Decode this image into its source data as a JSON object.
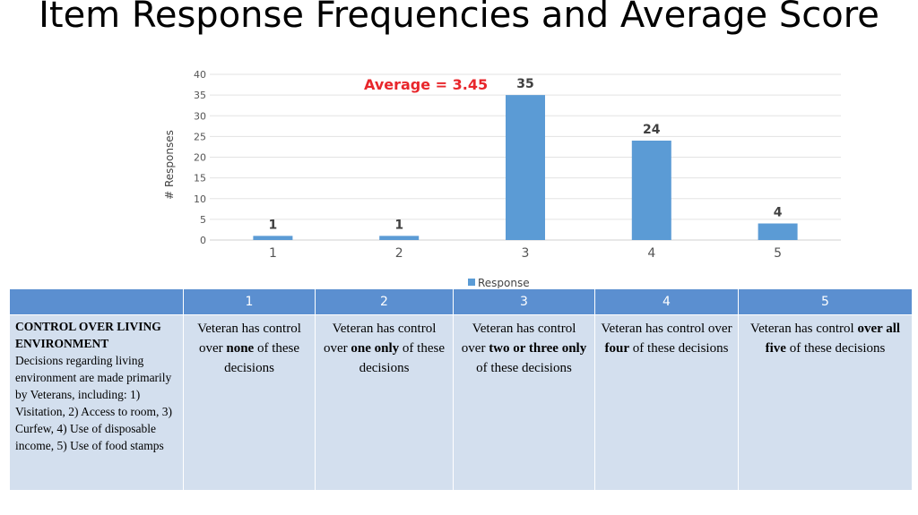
{
  "title": "Item Response Frequencies and Average Score",
  "average_label": "Average = 3.45",
  "chart_data": {
    "type": "bar",
    "categories": [
      "1",
      "2",
      "3",
      "4",
      "5"
    ],
    "series": [
      {
        "name": "Response",
        "values": [
          1,
          1,
          35,
          24,
          4
        ]
      }
    ],
    "data_labels": [
      "1",
      "1",
      "35",
      "24",
      "4"
    ],
    "ylabel": "# Responses",
    "xlabel": "",
    "ylim": [
      0,
      40
    ],
    "yticks": [
      0,
      5,
      10,
      15,
      20,
      25,
      30,
      35,
      40
    ],
    "grid": true,
    "legend": "bottom",
    "bar_color": "#5b9bd5"
  },
  "table": {
    "headers": [
      "",
      "1",
      "2",
      "3",
      "4",
      "5"
    ],
    "row_heading": "CONTROL OVER LIVING ENVIRONMENT",
    "row_text": "Decisions regarding living environment are made primarily by Veterans, including: 1) Visitation, 2) Access to room, 3) Curfew, 4) Use of disposable income, 5) Use of food stamps",
    "cells": [
      {
        "pre": "Veteran has control over ",
        "bold": "none",
        "post": " of these decisions"
      },
      {
        "pre": "Veteran has control over ",
        "bold": "one only",
        "post": " of these decisions"
      },
      {
        "pre": "Veteran has control over ",
        "bold": "two or three only",
        "post": " of these decisions"
      },
      {
        "pre": "Veteran has control over ",
        "bold": "four",
        "post": " of these decisions"
      },
      {
        "pre": "Veteran has control ",
        "bold": "over all five",
        "post": " of these decisions"
      }
    ]
  }
}
